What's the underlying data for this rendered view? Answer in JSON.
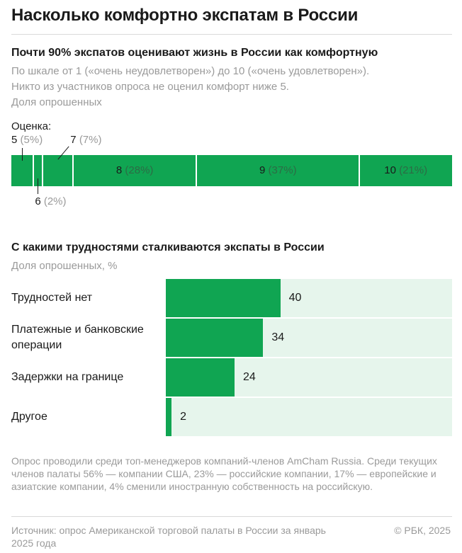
{
  "title": "Насколько комфортно экспатам в России",
  "chart_data": [
    {
      "type": "bar",
      "orientation": "stacked-horizontal",
      "title": "Почти 90% экспатов оценивают жизнь в России как комфортную",
      "subtitle_lines": [
        "По шкале от 1 («очень неудовлетворен») до 10 («очень удовлетворен»).",
        "Никто из участников опроса не оценил комфорт ниже 5.",
        "Доля опрошенных"
      ],
      "scale_label": "Оценка:",
      "series": [
        {
          "name": "5",
          "value": 5,
          "label": "(5%)"
        },
        {
          "name": "6",
          "value": 2,
          "label": "(2%)"
        },
        {
          "name": "7",
          "value": 7,
          "label": "(7%)"
        },
        {
          "name": "8",
          "value": 28,
          "label": "(28%)"
        },
        {
          "name": "9",
          "value": 37,
          "label": "(37%)"
        },
        {
          "name": "10",
          "value": 21,
          "label": "(21%)"
        }
      ],
      "color": "#10a552"
    },
    {
      "type": "bar",
      "orientation": "horizontal",
      "title": "С какими трудностями сталкиваются экспаты в России",
      "subtitle": "Доля опрошенных, %",
      "categories": [
        "Трудностей нет",
        "Платежные и банковские операции",
        "Задержки на границе",
        "Другое"
      ],
      "values": [
        40,
        34,
        24,
        2
      ],
      "xlim": [
        0,
        100
      ],
      "color": "#10a552",
      "background_color": "#e6f5ec"
    }
  ],
  "footnote": "Опрос проводили среди топ-менеджеров компаний-членов AmCham Russia. Среди текущих членов палаты 56% — компании США, 23% — российские компании, 17% — европейские и азиатские компании, 4% сменили иностранную собственность на российскую.",
  "source": "Источник: опрос Американской торговой палаты в России за январь 2025 года",
  "copyright": "© РБК, 2025"
}
